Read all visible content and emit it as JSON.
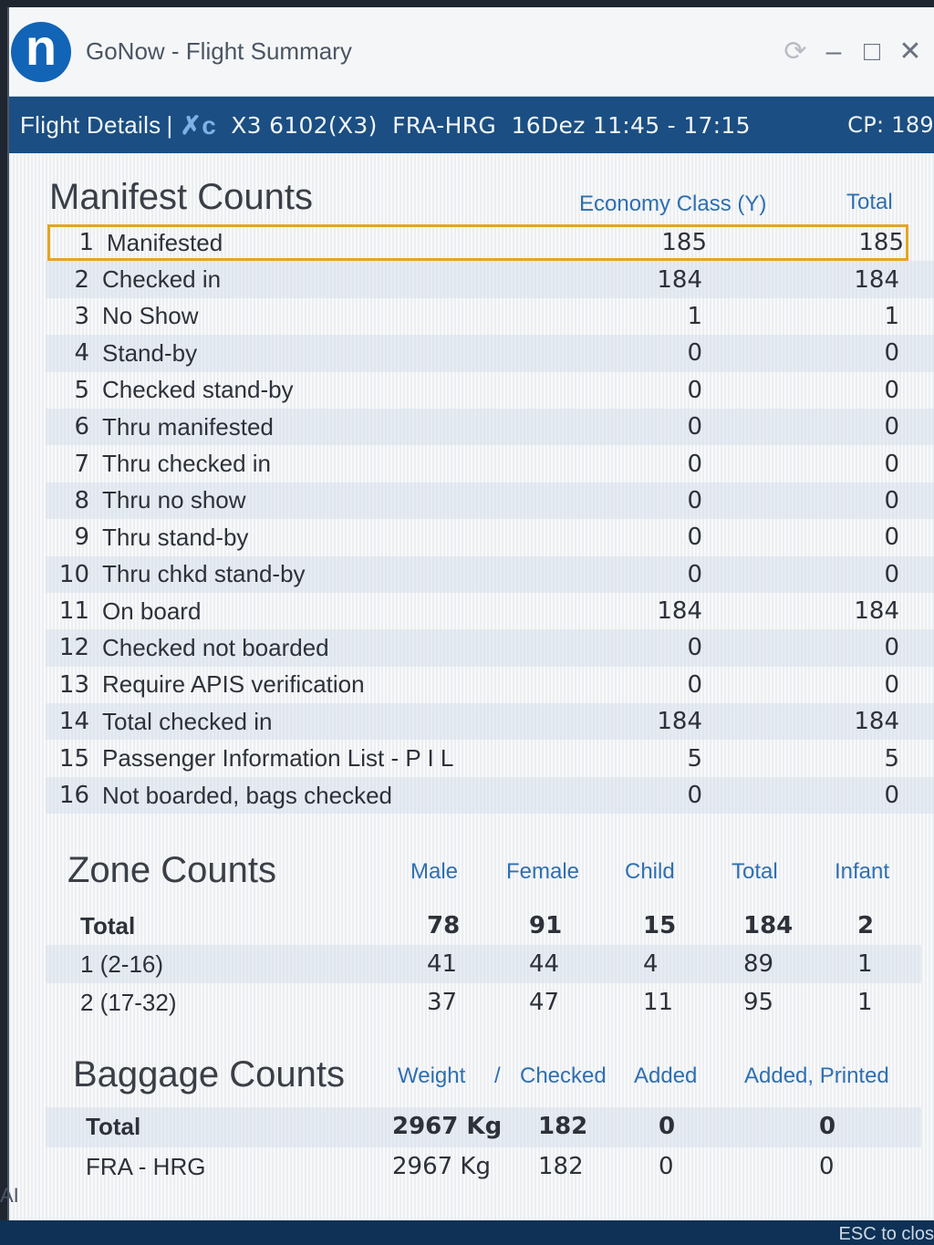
{
  "app": {
    "logo_letter": "n",
    "title": "GoNow - Flight Summary"
  },
  "window_controls": {
    "refresh": "⟳",
    "minimize": "–",
    "maximize": "□",
    "close": "✕"
  },
  "details": {
    "label": "Flight Details",
    "separator": "|",
    "airline_icon": "✗c",
    "flight_text": "X3 6102(X3)  FRA-HRG  16Dez 11:45 - 17:15",
    "cp": "CP: 189"
  },
  "manifest": {
    "title": "Manifest Counts",
    "headers": {
      "economy": "Economy Class (Y)",
      "total": "Total"
    },
    "rows": [
      {
        "num": "1",
        "label": "Manifested",
        "economy": "185",
        "total": "185"
      },
      {
        "num": "2",
        "label": "Checked in",
        "economy": "184",
        "total": "184"
      },
      {
        "num": "3",
        "label": "No Show",
        "economy": "1",
        "total": "1"
      },
      {
        "num": "4",
        "label": "Stand-by",
        "economy": "0",
        "total": "0"
      },
      {
        "num": "5",
        "label": "Checked stand-by",
        "economy": "0",
        "total": "0"
      },
      {
        "num": "6",
        "label": "Thru manifested",
        "economy": "0",
        "total": "0"
      },
      {
        "num": "7",
        "label": "Thru checked in",
        "economy": "0",
        "total": "0"
      },
      {
        "num": "8",
        "label": "Thru no show",
        "economy": "0",
        "total": "0"
      },
      {
        "num": "9",
        "label": "Thru stand-by",
        "economy": "0",
        "total": "0"
      },
      {
        "num": "10",
        "label": "Thru chkd stand-by",
        "economy": "0",
        "total": "0"
      },
      {
        "num": "11",
        "label": "On board",
        "economy": "184",
        "total": "184"
      },
      {
        "num": "12",
        "label": "Checked not boarded",
        "economy": "0",
        "total": "0"
      },
      {
        "num": "13",
        "label": "Require APIS verification",
        "economy": "0",
        "total": "0"
      },
      {
        "num": "14",
        "label": "Total checked in",
        "economy": "184",
        "total": "184"
      },
      {
        "num": "15",
        "label": "Passenger Information List - P I L",
        "economy": "5",
        "total": "5"
      },
      {
        "num": "16",
        "label": "Not boarded, bags checked",
        "economy": "0",
        "total": "0"
      }
    ]
  },
  "zone": {
    "title": "Zone Counts",
    "headers": {
      "male": "Male",
      "female": "Female",
      "child": "Child",
      "total": "Total",
      "infant": "Infant"
    },
    "rows": [
      {
        "label": "Total",
        "male": "78",
        "female": "91",
        "child": "15",
        "total": "184",
        "infant": "2"
      },
      {
        "label": "1 (2-16)",
        "male": "41",
        "female": "44",
        "child": "4",
        "total": "89",
        "infant": "1"
      },
      {
        "label": "2 (17-32)",
        "male": "37",
        "female": "47",
        "child": "11",
        "total": "95",
        "infant": "1"
      }
    ]
  },
  "baggage": {
    "title": "Baggage Counts",
    "headers": {
      "weight": "Weight",
      "slash": "/",
      "checked": "Checked",
      "added": "Added",
      "added_printed": "Added, Printed"
    },
    "rows": [
      {
        "label": "Total",
        "weight": "2967 Kg",
        "checked": "182",
        "added": "0",
        "added_printed": "0"
      },
      {
        "label": "FRA - HRG",
        "weight": "2967 Kg",
        "checked": "182",
        "added": "0",
        "added_printed": "0"
      }
    ]
  },
  "footer": {
    "esc_hint": "ESC to clos"
  },
  "side_label": "AI",
  "colors": {
    "accent": "#1b4e82",
    "header_blue": "#2f6fb0",
    "selection": "#e2a624",
    "logo": "#1264b6"
  }
}
